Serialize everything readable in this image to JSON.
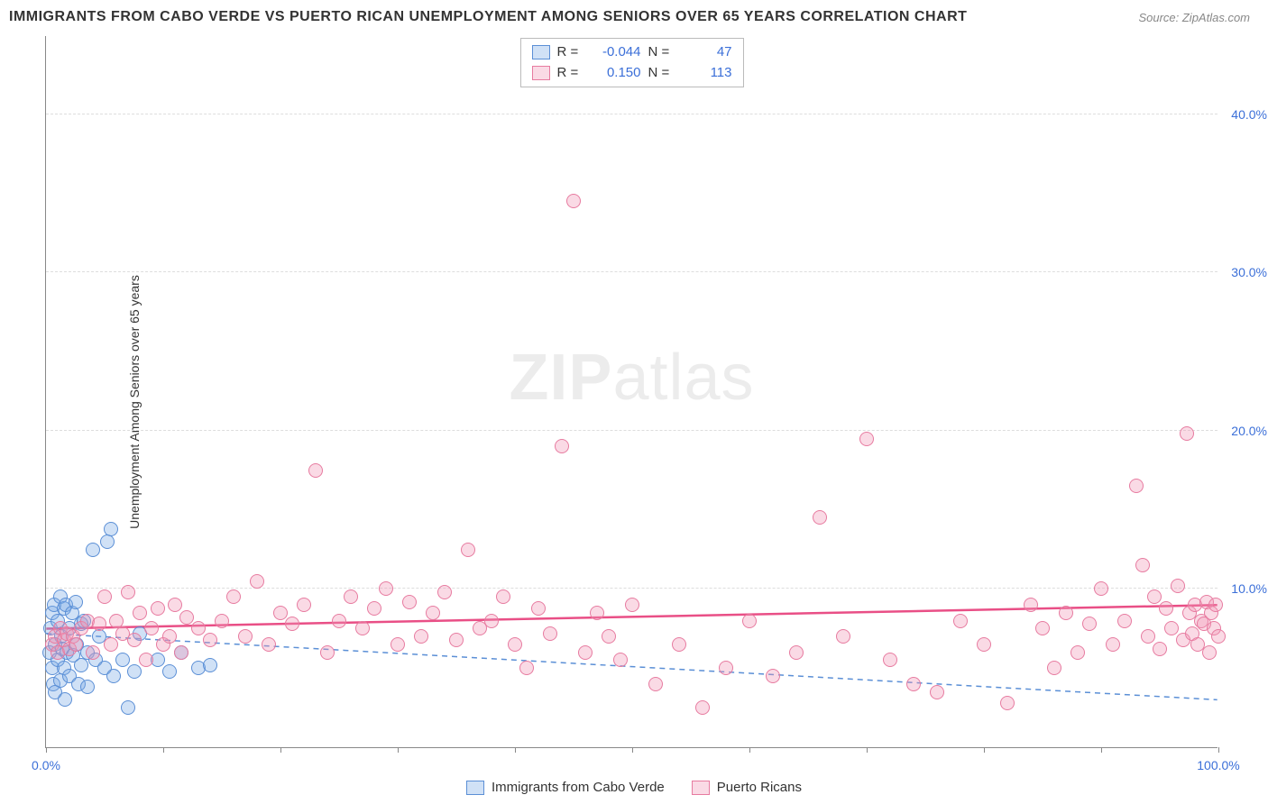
{
  "title": "IMMIGRANTS FROM CABO VERDE VS PUERTO RICAN UNEMPLOYMENT AMONG SENIORS OVER 65 YEARS CORRELATION CHART",
  "source": "Source: ZipAtlas.com",
  "yaxis_label": "Unemployment Among Seniors over 65 years",
  "watermark_a": "ZIP",
  "watermark_b": "atlas",
  "chart": {
    "type": "scatter",
    "xlim": [
      0,
      100
    ],
    "ylim": [
      0,
      45
    ],
    "x_ticks": [
      0,
      10,
      20,
      30,
      40,
      50,
      60,
      70,
      80,
      90,
      100
    ],
    "x_tick_labels": {
      "0": "0.0%",
      "100": "100.0%"
    },
    "y_gridlines": [
      10,
      20,
      30,
      40
    ],
    "y_tick_labels": {
      "10": "10.0%",
      "20": "20.0%",
      "30": "30.0%",
      "40": "40.0%"
    },
    "grid_color": "#dddddd",
    "axis_color": "#888888",
    "label_color": "#3b6fd8",
    "background_color": "#ffffff",
    "marker_radius": 8,
    "marker_stroke_width": 1.5,
    "series": [
      {
        "name": "Immigrants from Cabo Verde",
        "fill": "rgba(120,170,230,0.35)",
        "stroke": "#5b8fd6",
        "r_label": "R =",
        "r_value": "-0.044",
        "n_label": "N =",
        "n_value": "47",
        "trend": {
          "y_at_x0": 7.2,
          "y_at_x100": 3.0,
          "dash": "6,5",
          "color": "#5b8fd6",
          "width": 1.5
        },
        "points": [
          [
            0.3,
            6.0
          ],
          [
            0.4,
            7.5
          ],
          [
            0.5,
            5.0
          ],
          [
            0.5,
            8.5
          ],
          [
            0.6,
            4.0
          ],
          [
            0.7,
            9.0
          ],
          [
            0.8,
            6.5
          ],
          [
            0.8,
            3.5
          ],
          [
            1.0,
            8.0
          ],
          [
            1.0,
            5.5
          ],
          [
            1.2,
            9.5
          ],
          [
            1.2,
            4.2
          ],
          [
            1.3,
            7.0
          ],
          [
            1.4,
            6.2
          ],
          [
            1.5,
            8.8
          ],
          [
            1.5,
            5.0
          ],
          [
            1.6,
            3.0
          ],
          [
            1.7,
            9.0
          ],
          [
            1.8,
            6.0
          ],
          [
            2.0,
            7.5
          ],
          [
            2.0,
            4.5
          ],
          [
            2.2,
            8.5
          ],
          [
            2.3,
            5.8
          ],
          [
            2.5,
            9.2
          ],
          [
            2.6,
            6.5
          ],
          [
            2.8,
            4.0
          ],
          [
            3.0,
            7.8
          ],
          [
            3.0,
            5.2
          ],
          [
            3.2,
            8.0
          ],
          [
            3.5,
            6.0
          ],
          [
            3.5,
            3.8
          ],
          [
            4.0,
            12.5
          ],
          [
            4.2,
            5.5
          ],
          [
            4.5,
            7.0
          ],
          [
            5.0,
            5.0
          ],
          [
            5.2,
            13.0
          ],
          [
            5.5,
            13.8
          ],
          [
            5.8,
            4.5
          ],
          [
            6.5,
            5.5
          ],
          [
            7.0,
            2.5
          ],
          [
            7.5,
            4.8
          ],
          [
            8.0,
            7.2
          ],
          [
            9.5,
            5.5
          ],
          [
            10.5,
            4.8
          ],
          [
            11.5,
            6.0
          ],
          [
            13.0,
            5.0
          ],
          [
            14.0,
            5.2
          ]
        ]
      },
      {
        "name": "Puerto Ricans",
        "fill": "rgba(240,150,180,0.35)",
        "stroke": "#e77ba0",
        "r_label": "R =",
        "r_value": "0.150",
        "n_label": "N =",
        "n_value": "113",
        "trend": {
          "y_at_x0": 7.5,
          "y_at_x100": 9.0,
          "dash": "none",
          "color": "#e94f86",
          "width": 2.5
        },
        "points": [
          [
            0.5,
            6.5
          ],
          [
            0.8,
            7.0
          ],
          [
            1.0,
            6.0
          ],
          [
            1.2,
            7.5
          ],
          [
            1.5,
            6.8
          ],
          [
            1.8,
            7.2
          ],
          [
            2.0,
            6.2
          ],
          [
            2.3,
            7.0
          ],
          [
            2.5,
            6.5
          ],
          [
            3.0,
            7.5
          ],
          [
            3.5,
            8.0
          ],
          [
            4.0,
            6.0
          ],
          [
            4.5,
            7.8
          ],
          [
            5.0,
            9.5
          ],
          [
            5.5,
            6.5
          ],
          [
            6.0,
            8.0
          ],
          [
            6.5,
            7.2
          ],
          [
            7.0,
            9.8
          ],
          [
            7.5,
            6.8
          ],
          [
            8.0,
            8.5
          ],
          [
            8.5,
            5.5
          ],
          [
            9.0,
            7.5
          ],
          [
            9.5,
            8.8
          ],
          [
            10.0,
            6.5
          ],
          [
            10.5,
            7.0
          ],
          [
            11.0,
            9.0
          ],
          [
            11.5,
            6.0
          ],
          [
            12.0,
            8.2
          ],
          [
            13.0,
            7.5
          ],
          [
            14.0,
            6.8
          ],
          [
            15.0,
            8.0
          ],
          [
            16.0,
            9.5
          ],
          [
            17.0,
            7.0
          ],
          [
            18.0,
            10.5
          ],
          [
            19.0,
            6.5
          ],
          [
            20.0,
            8.5
          ],
          [
            21.0,
            7.8
          ],
          [
            22.0,
            9.0
          ],
          [
            23.0,
            17.5
          ],
          [
            24.0,
            6.0
          ],
          [
            25.0,
            8.0
          ],
          [
            26.0,
            9.5
          ],
          [
            27.0,
            7.5
          ],
          [
            28.0,
            8.8
          ],
          [
            29.0,
            10.0
          ],
          [
            30.0,
            6.5
          ],
          [
            31.0,
            9.2
          ],
          [
            32.0,
            7.0
          ],
          [
            33.0,
            8.5
          ],
          [
            34.0,
            9.8
          ],
          [
            35.0,
            6.8
          ],
          [
            36.0,
            12.5
          ],
          [
            37.0,
            7.5
          ],
          [
            38.0,
            8.0
          ],
          [
            39.0,
            9.5
          ],
          [
            40.0,
            6.5
          ],
          [
            41.0,
            5.0
          ],
          [
            42.0,
            8.8
          ],
          [
            43.0,
            7.2
          ],
          [
            44.0,
            19.0
          ],
          [
            45.0,
            34.5
          ],
          [
            46.0,
            6.0
          ],
          [
            47.0,
            8.5
          ],
          [
            48.0,
            7.0
          ],
          [
            49.0,
            5.5
          ],
          [
            50.0,
            9.0
          ],
          [
            52.0,
            4.0
          ],
          [
            54.0,
            6.5
          ],
          [
            56.0,
            2.5
          ],
          [
            58.0,
            5.0
          ],
          [
            60.0,
            8.0
          ],
          [
            62.0,
            4.5
          ],
          [
            64.0,
            6.0
          ],
          [
            66.0,
            14.5
          ],
          [
            68.0,
            7.0
          ],
          [
            70.0,
            19.5
          ],
          [
            72.0,
            5.5
          ],
          [
            74.0,
            4.0
          ],
          [
            76.0,
            3.5
          ],
          [
            78.0,
            8.0
          ],
          [
            80.0,
            6.5
          ],
          [
            82.0,
            2.8
          ],
          [
            84.0,
            9.0
          ],
          [
            85.0,
            7.5
          ],
          [
            86.0,
            5.0
          ],
          [
            87.0,
            8.5
          ],
          [
            88.0,
            6.0
          ],
          [
            89.0,
            7.8
          ],
          [
            90.0,
            10.0
          ],
          [
            91.0,
            6.5
          ],
          [
            92.0,
            8.0
          ],
          [
            93.0,
            16.5
          ],
          [
            93.5,
            11.5
          ],
          [
            94.0,
            7.0
          ],
          [
            94.5,
            9.5
          ],
          [
            95.0,
            6.2
          ],
          [
            95.5,
            8.8
          ],
          [
            96.0,
            7.5
          ],
          [
            96.5,
            10.2
          ],
          [
            97.0,
            6.8
          ],
          [
            97.3,
            19.8
          ],
          [
            97.5,
            8.5
          ],
          [
            97.8,
            7.2
          ],
          [
            98.0,
            9.0
          ],
          [
            98.2,
            6.5
          ],
          [
            98.5,
            8.0
          ],
          [
            98.8,
            7.8
          ],
          [
            99.0,
            9.2
          ],
          [
            99.2,
            6.0
          ],
          [
            99.4,
            8.5
          ],
          [
            99.6,
            7.5
          ],
          [
            99.8,
            9.0
          ],
          [
            100.0,
            7.0
          ]
        ]
      }
    ]
  },
  "legend_bottom": [
    {
      "swatch_fill": "rgba(120,170,230,0.35)",
      "swatch_stroke": "#5b8fd6",
      "label": "Immigrants from Cabo Verde"
    },
    {
      "swatch_fill": "rgba(240,150,180,0.35)",
      "swatch_stroke": "#e77ba0",
      "label": "Puerto Ricans"
    }
  ]
}
